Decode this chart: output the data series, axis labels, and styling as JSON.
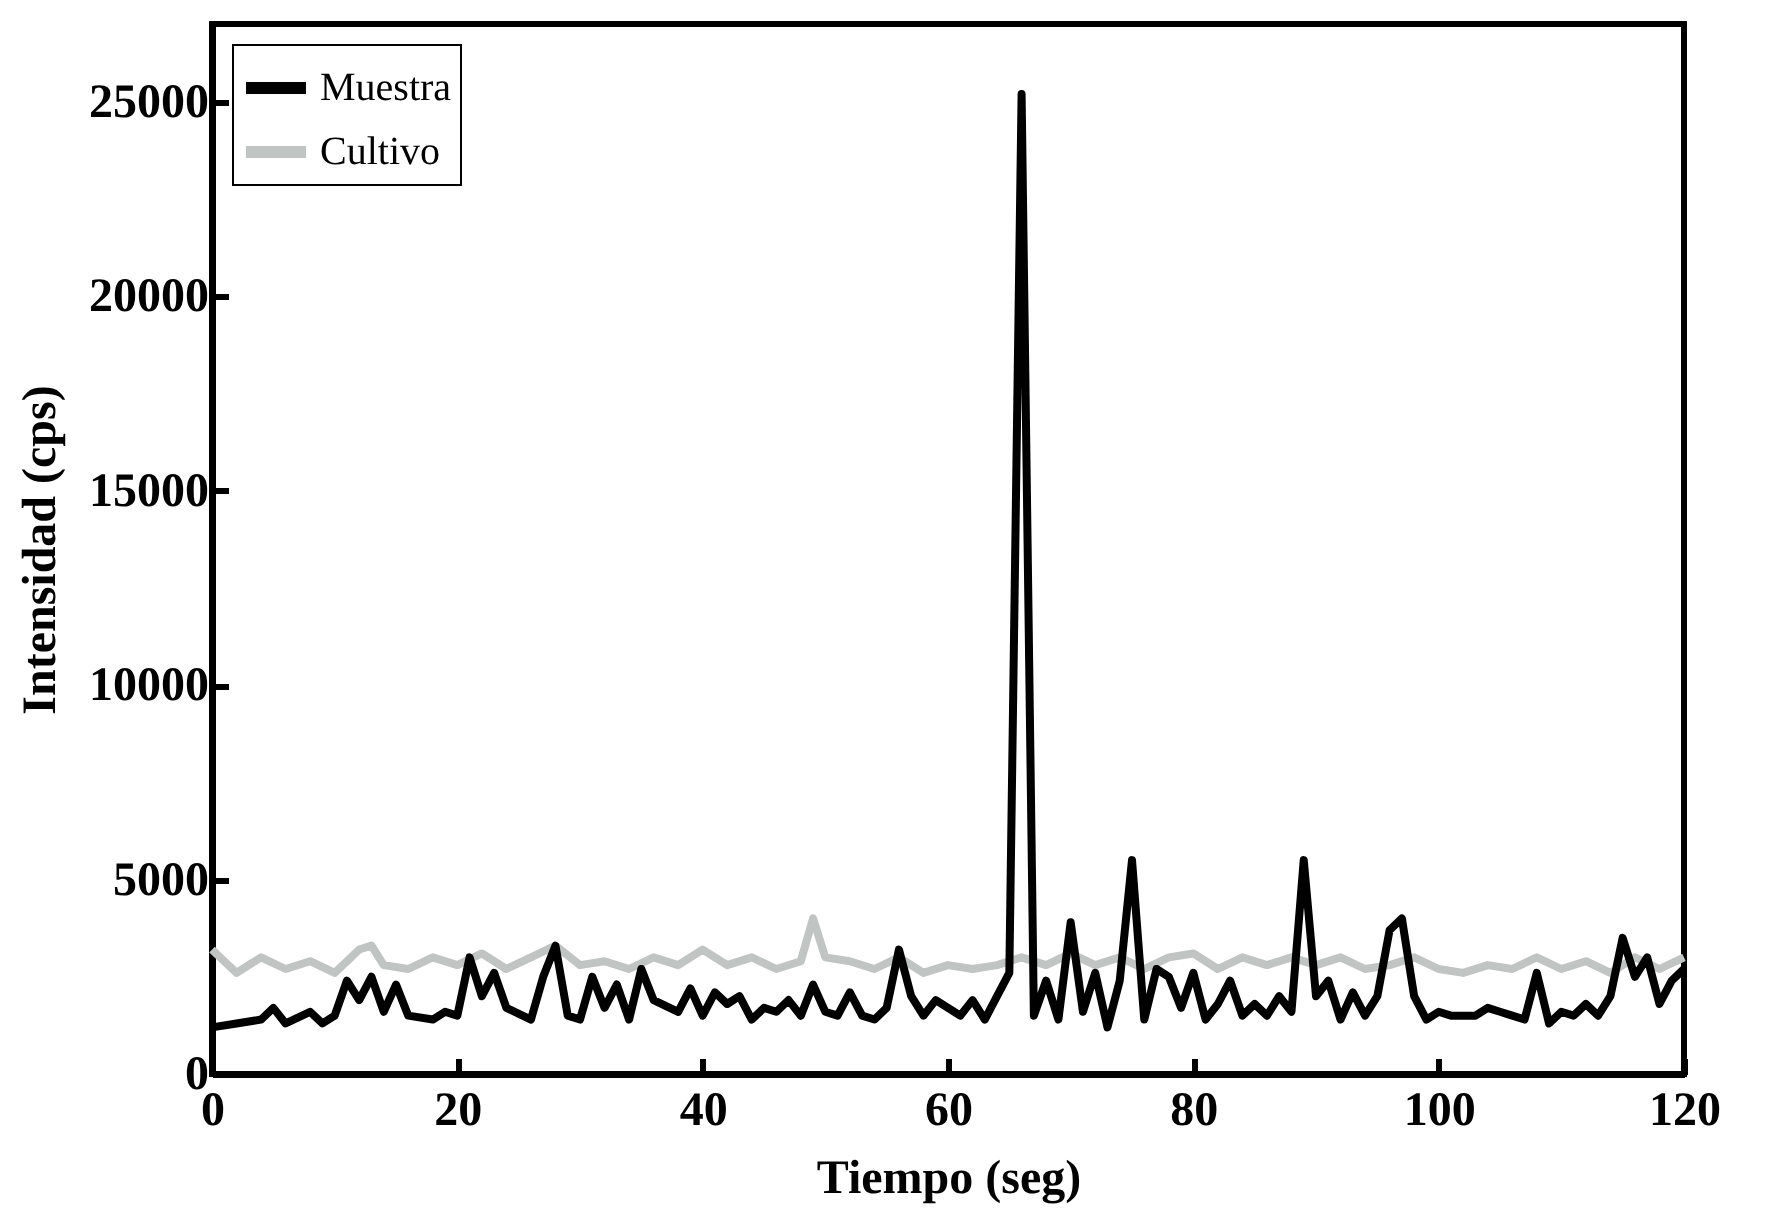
{
  "chart_data": {
    "type": "line",
    "xlabel": "Tiempo (seg)",
    "ylabel": "Intensidad (cps)",
    "xlim": [
      0,
      120
    ],
    "ylim": [
      0,
      27000
    ],
    "xticks": [
      0,
      20,
      40,
      60,
      80,
      100,
      120
    ],
    "yticks": [
      0,
      5000,
      10000,
      15000,
      20000,
      25000
    ],
    "legend": "top left",
    "grid": false,
    "series": [
      {
        "name": "Cultivo",
        "color": "#c0c4c3",
        "x": [
          0,
          2,
          4,
          6,
          8,
          10,
          12,
          13,
          14,
          16,
          18,
          20,
          22,
          24,
          26,
          28,
          30,
          32,
          34,
          36,
          38,
          40,
          42,
          44,
          46,
          48,
          49,
          50,
          52,
          54,
          56,
          58,
          60,
          62,
          64,
          66,
          68,
          70,
          72,
          74,
          76,
          78,
          80,
          82,
          84,
          86,
          88,
          90,
          92,
          94,
          96,
          98,
          100,
          102,
          104,
          106,
          108,
          110,
          112,
          114,
          116,
          118,
          120
        ],
        "values": [
          3200,
          2600,
          3000,
          2700,
          2900,
          2600,
          3200,
          3300,
          2800,
          2700,
          3000,
          2800,
          3100,
          2700,
          3000,
          3300,
          2800,
          2900,
          2700,
          3000,
          2800,
          3200,
          2800,
          3000,
          2700,
          2900,
          4000,
          3000,
          2900,
          2700,
          3000,
          2600,
          2800,
          2700,
          2800,
          3000,
          2800,
          3100,
          2800,
          3000,
          2700,
          3000,
          3100,
          2700,
          3000,
          2800,
          3000,
          2800,
          3000,
          2700,
          2800,
          3000,
          2700,
          2600,
          2800,
          2700,
          3000,
          2700,
          2900,
          2600,
          3000,
          2700,
          3000
        ]
      },
      {
        "name": "Muestra",
        "color": "#000000",
        "x": [
          0,
          2,
          4,
          5,
          6,
          8,
          9,
          10,
          11,
          12,
          13,
          14,
          15,
          16,
          18,
          19,
          20,
          21,
          22,
          23,
          24,
          26,
          27,
          28,
          29,
          30,
          31,
          32,
          33,
          34,
          35,
          36,
          38,
          39,
          40,
          41,
          42,
          43,
          44,
          45,
          46,
          47,
          48,
          49,
          50,
          51,
          52,
          53,
          54,
          55,
          56,
          57,
          58,
          59,
          60,
          61,
          62,
          63,
          64,
          65,
          66,
          67,
          68,
          69,
          70,
          71,
          72,
          73,
          74,
          75,
          76,
          77,
          78,
          79,
          80,
          81,
          82,
          83,
          84,
          85,
          86,
          87,
          88,
          89,
          90,
          91,
          92,
          93,
          94,
          95,
          96,
          97,
          98,
          99,
          100,
          101,
          102,
          103,
          104,
          105,
          106,
          107,
          108,
          109,
          110,
          111,
          112,
          113,
          114,
          115,
          116,
          117,
          118,
          119,
          120
        ],
        "values": [
          1200,
          1300,
          1400,
          1700,
          1300,
          1600,
          1300,
          1500,
          2400,
          1900,
          2500,
          1600,
          2300,
          1500,
          1400,
          1600,
          1500,
          3000,
          2000,
          2600,
          1700,
          1400,
          2500,
          3300,
          1500,
          1400,
          2500,
          1700,
          2300,
          1400,
          2700,
          1900,
          1600,
          2200,
          1500,
          2100,
          1800,
          2000,
          1400,
          1700,
          1600,
          1900,
          1500,
          2300,
          1600,
          1500,
          2100,
          1500,
          1400,
          1700,
          3200,
          2000,
          1500,
          1900,
          1700,
          1500,
          1900,
          1400,
          2000,
          2600,
          25200,
          1500,
          2400,
          1400,
          3900,
          1600,
          2600,
          1200,
          2400,
          5500,
          1400,
          2700,
          2500,
          1700,
          2600,
          1400,
          1800,
          2400,
          1500,
          1800,
          1500,
          2000,
          1600,
          5500,
          2000,
          2400,
          1400,
          2100,
          1500,
          2000,
          3700,
          4000,
          2000,
          1400,
          1600,
          1500,
          1500,
          1500,
          1700,
          1600,
          1500,
          1400,
          2600,
          1300,
          1600,
          1500,
          1800,
          1500,
          2000,
          3500,
          2500,
          3000,
          1800,
          2400,
          2700
        ]
      }
    ]
  }
}
